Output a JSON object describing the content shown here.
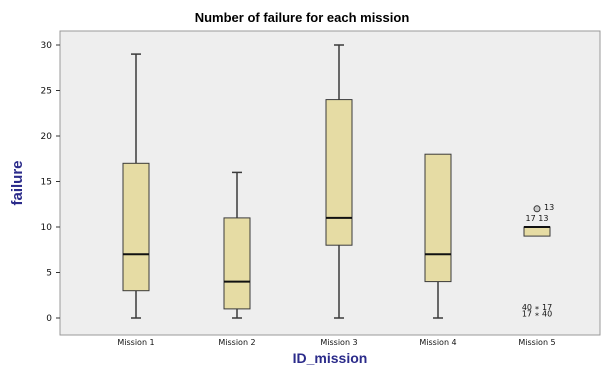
{
  "chart_data": {
    "type": "boxplot",
    "title": "Number of failure for each mission",
    "xlabel": "ID_mission",
    "ylabel": "failure",
    "ylim": [
      0,
      30
    ],
    "yticks": [
      0,
      5,
      10,
      15,
      20,
      25,
      30
    ],
    "grid": false,
    "legend": "none",
    "colors": {
      "box_fill": "#e6dca4",
      "box_stroke": "#3a3a3a",
      "axis_title": "#2b2b8a",
      "plot_background": "#eeeeee"
    },
    "categories": [
      "Mission 1",
      "Mission 2",
      "Mission 3",
      "Mission 4",
      "Mission 5"
    ],
    "boxes": [
      {
        "category": "Mission 1",
        "min": 0,
        "q1": 3,
        "median": 7,
        "q3": 17,
        "max": 29,
        "outliers": []
      },
      {
        "category": "Mission 2",
        "min": 0,
        "q1": 1,
        "median": 4,
        "q3": 11,
        "max": 16,
        "outliers": []
      },
      {
        "category": "Mission 3",
        "min": 0,
        "q1": 8,
        "median": 11,
        "q3": 24,
        "max": 30,
        "outliers": []
      },
      {
        "category": "Mission 4",
        "min": 0,
        "q1": 4,
        "median": 7,
        "q3": 18,
        "max": 18,
        "outliers": []
      },
      {
        "category": "Mission 5",
        "min": 9,
        "q1": 9,
        "median": 10,
        "q3": 10,
        "max": 10,
        "outliers": [
          {
            "value": 12,
            "labels": [
              "13"
            ],
            "marker": "circle"
          },
          {
            "value": 1,
            "labels": [
              "40",
              "17"
            ],
            "marker": "star"
          },
          {
            "value": 0.3,
            "labels": [
              "17",
              "40"
            ],
            "marker": "star"
          }
        ],
        "annotations": [
          {
            "value": 11,
            "text": "17 13"
          }
        ]
      }
    ]
  }
}
